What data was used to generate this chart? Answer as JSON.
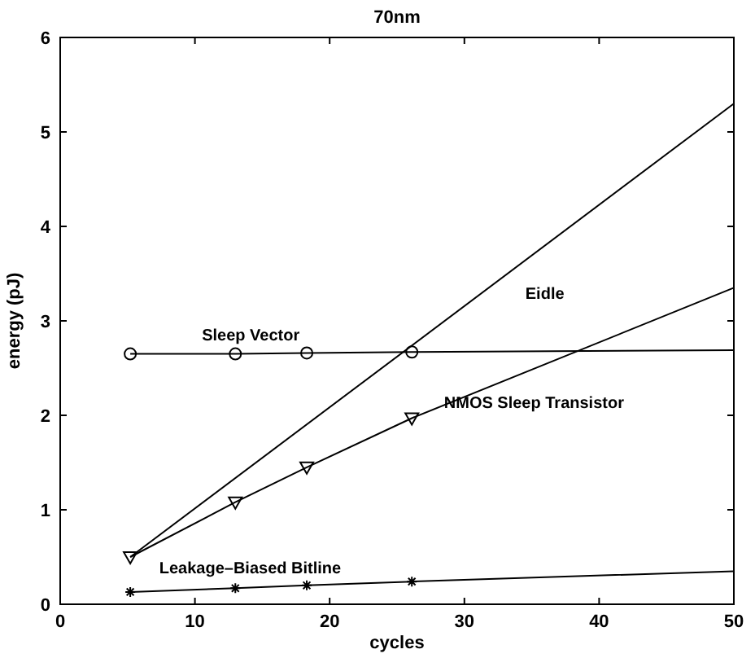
{
  "chart_data": {
    "type": "line",
    "title": "70nm",
    "xlabel": "cycles",
    "ylabel": "energy (pJ)",
    "xlim": [
      0,
      50
    ],
    "ylim": [
      0,
      6
    ],
    "xticks": [
      0,
      10,
      20,
      30,
      40,
      50
    ],
    "yticks": [
      0,
      1,
      2,
      3,
      4,
      5,
      6
    ],
    "grid": false,
    "series": [
      {
        "name": "Eidle",
        "color": "#000000",
        "marker": "none",
        "x": [
          5.2,
          50
        ],
        "values": [
          0.5,
          5.3
        ]
      },
      {
        "name": "Sleep Vector",
        "color": "#000000",
        "marker": "none",
        "x": [
          5.2,
          13,
          18.3,
          26.1,
          50
        ],
        "values": [
          2.65,
          2.65,
          2.66,
          2.67,
          2.69
        ]
      },
      {
        "type": "scatter",
        "color": "#000000",
        "marker": "circle",
        "x": [
          5.2,
          13,
          18.3,
          26.1
        ],
        "values": [
          2.65,
          2.65,
          2.66,
          2.67
        ]
      },
      {
        "name": "NMOS Sleep Transistor",
        "color": "#000000",
        "marker": "none",
        "x": [
          5.2,
          13,
          18.3,
          26.1,
          50
        ],
        "values": [
          0.5,
          1.08,
          1.45,
          1.97,
          3.35
        ]
      },
      {
        "type": "scatter",
        "color": "#000000",
        "marker": "triangle",
        "x": [
          5.2,
          13,
          18.3,
          26.1
        ],
        "values": [
          0.5,
          1.08,
          1.45,
          1.97
        ]
      },
      {
        "name": "Leakage–Biased Bitline",
        "color": "#000000",
        "marker": "none",
        "x": [
          5.2,
          13,
          18.3,
          26.1,
          50
        ],
        "values": [
          0.13,
          0.17,
          0.2,
          0.24,
          0.35
        ]
      },
      {
        "type": "scatter",
        "color": "#000000",
        "marker": "cross",
        "x": [
          5.2,
          13,
          18.3,
          26.1
        ],
        "values": [
          0.13,
          0.17,
          0.2,
          0.24
        ]
      }
    ]
  }
}
